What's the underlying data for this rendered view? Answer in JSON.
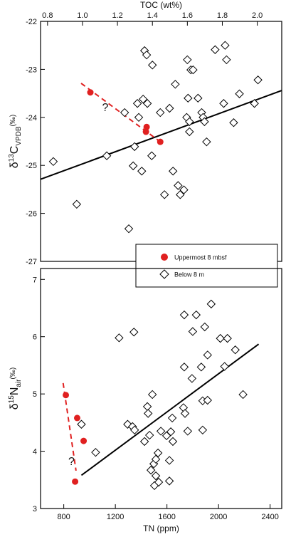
{
  "chart_data": [
    {
      "type": "scatter",
      "x_axis_position": "top",
      "x_label": "TOC (wt%)",
      "y_label": {
        "symbol": "δ",
        "superscript": "13",
        "element": "C",
        "subscript": "VPDB",
        "unit": "(‰)"
      },
      "xlim": [
        0.76,
        2.14
      ],
      "xticks": [
        0.8,
        {
          "value": 1,
          "label": "1.0"
        },
        1.2,
        1.4,
        1.6,
        1.8,
        {
          "value": 2,
          "label": "2.0"
        }
      ],
      "ylim": [
        -27,
        -22
      ],
      "yticks": [
        -27,
        -26,
        -25,
        -24,
        -23,
        -22
      ],
      "legend": "lower right",
      "series": [
        {
          "name": "Uppermost 8 mbsf",
          "marker": "dot",
          "color": "#e02020",
          "x": [
            1.045,
            1.367,
            1.363,
            1.445
          ],
          "values": [
            -23.48,
            -24.2,
            -24.3,
            -24.51
          ]
        },
        {
          "name": "Below 8 m",
          "marker": "diamond",
          "color": "#000000",
          "x": [
            0.833,
            0.967,
            1.139,
            1.241,
            1.265,
            1.29,
            1.298,
            1.314,
            1.322,
            1.339,
            1.347,
            1.355,
            1.367,
            1.371,
            1.396,
            1.4,
            1.445,
            1.469,
            1.498,
            1.518,
            1.531,
            1.547,
            1.559,
            1.58,
            1.596,
            1.612,
            1.6,
            1.62,
            1.633,
            1.604,
            1.612,
            1.661,
            1.682,
            1.69,
            1.698,
            1.71,
            1.759,
            1.816,
            1.824,
            1.808,
            1.865,
            1.898,
            1.984,
            2.004
          ],
          "values": [
            -24.92,
            -25.81,
            -24.8,
            -23.9,
            -26.32,
            -25.01,
            -24.61,
            -23.71,
            -24.0,
            -25.12,
            -23.62,
            -22.61,
            -22.7,
            -23.71,
            -24.8,
            -22.91,
            -23.9,
            -25.61,
            -23.81,
            -25.12,
            -23.31,
            -25.42,
            -25.61,
            -25.51,
            -24.0,
            -24.09,
            -22.8,
            -23.01,
            -23.01,
            -23.6,
            -24.3,
            -23.6,
            -23.9,
            -24.0,
            -24.09,
            -24.51,
            -22.59,
            -22.5,
            -22.8,
            -23.71,
            -24.11,
            -23.51,
            -23.71,
            -23.22
          ]
        }
      ],
      "lines": [
        {
          "color": "#000000",
          "dashed": false,
          "x": [
            0.76,
            2.14
          ],
          "values": [
            -25.29,
            -23.44
          ]
        },
        {
          "color": "#e02020",
          "dashed": true,
          "x": [
            0.992,
            1.449
          ],
          "values": [
            -23.29,
            -24.52
          ]
        }
      ],
      "annotations": [
        {
          "text": "?",
          "x": 1.13,
          "y": -23.78
        }
      ]
    },
    {
      "type": "scatter",
      "x_axis_position": "bottom",
      "x_label": "TN (ppm)",
      "y_label": {
        "symbol": "δ",
        "superscript": "15",
        "element": "N",
        "subscript": "air",
        "unit": "(‰)"
      },
      "xlim": [
        620,
        2490
      ],
      "xticks": [
        800,
        1200,
        1600,
        2000,
        2400
      ],
      "ylim": [
        3,
        7.19
      ],
      "yticks": [
        3,
        4,
        5,
        6,
        7
      ],
      "series": [
        {
          "marker": "dot",
          "color": "#e02020",
          "x": [
            816,
            904,
            954,
            888
          ],
          "values": [
            4.98,
            4.58,
            4.18,
            3.47
          ]
        },
        {
          "marker": "diamond",
          "color": "#000000",
          "x": [
            937,
            1047,
            1229,
            1295,
            1333,
            1344,
            1349,
            1426,
            1448,
            1454,
            1465,
            1476,
            1487,
            1498,
            1503,
            1514,
            1514,
            1531,
            1536,
            1553,
            1597,
            1619,
            1619,
            1630,
            1641,
            1646,
            1728,
            1734,
            1734,
            1740,
            1761,
            1794,
            1800,
            1827,
            1866,
            1877,
            1877,
            1893,
            1915,
            1915,
            1943,
            2014,
            2047,
            2069,
            2130,
            2190
          ],
          "values": [
            4.47,
            3.98,
            5.98,
            4.47,
            4.43,
            6.08,
            4.37,
            4.17,
            4.78,
            4.66,
            4.28,
            3.67,
            4.99,
            3.78,
            3.4,
            3.86,
            3.57,
            3.97,
            3.46,
            4.35,
            4.27,
            3.84,
            3.48,
            4.34,
            4.58,
            4.17,
            4.76,
            5.47,
            6.38,
            4.66,
            4.35,
            5.27,
            6.09,
            6.38,
            5.47,
            4.88,
            4.37,
            6.17,
            5.68,
            4.89,
            6.57,
            5.97,
            5.48,
            5.97,
            5.77,
            4.99
          ]
        }
      ],
      "lines": [
        {
          "color": "#000000",
          "dashed": false,
          "x": [
            937,
            2311
          ],
          "values": [
            3.58,
            5.87
          ]
        },
        {
          "color": "#e02020",
          "dashed": true,
          "x": [
            795,
            895
          ],
          "values": [
            5.19,
            3.66
          ]
        }
      ],
      "annotations": [
        {
          "text": "?",
          "x": 860,
          "y": 3.83
        }
      ]
    }
  ]
}
